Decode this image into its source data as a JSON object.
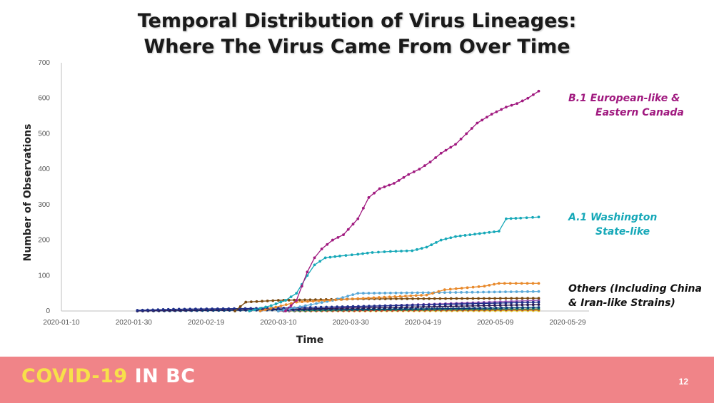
{
  "slide": {
    "title_line1": "Temporal Distribution of Virus Lineages:",
    "title_line2": "Where The Virus Came From Over Time",
    "footer_brand_a": "COVID-19",
    "footer_brand_b": " IN BC",
    "page_number": "12",
    "colors": {
      "footer_bg": "#f08488",
      "brand_yellow": "#f7e04a",
      "brand_white": "#ffffff"
    }
  },
  "chart_data": {
    "type": "line",
    "xlabel": "Time",
    "ylabel": "Number of Observations",
    "ylim": [
      0,
      700
    ],
    "yticks": [
      0,
      100,
      200,
      300,
      400,
      500,
      600,
      700
    ],
    "xlim": [
      "2020-01-10",
      "2020-05-29"
    ],
    "xticks": [
      "2020-01-10",
      "2020-01-30",
      "2020-02-19",
      "2020-03-10",
      "2020-03-30",
      "2020-04-19",
      "2020-05-09",
      "2020-05-29"
    ],
    "grid": false,
    "annotations": [
      {
        "series": "B.1",
        "lines": [
          "B.1   European-like &",
          "Eastern Canada"
        ],
        "color": "#a0197f"
      },
      {
        "series": "A.1",
        "lines": [
          "A.1   Washington",
          "State-like"
        ],
        "color": "#16a8b8"
      },
      {
        "series": "Others",
        "lines": [
          "Others (Including China",
          "& Iran-like Strains)"
        ],
        "color": "#111111"
      }
    ],
    "series": [
      {
        "name": "B.1",
        "color": "#a0197f",
        "x": [
          "2020-03-12",
          "2020-03-15",
          "2020-03-18",
          "2020-03-20",
          "2020-03-22",
          "2020-03-25",
          "2020-03-28",
          "2020-04-01",
          "2020-04-04",
          "2020-04-07",
          "2020-04-11",
          "2020-04-15",
          "2020-04-18",
          "2020-04-21",
          "2020-04-24",
          "2020-04-28",
          "2020-05-01",
          "2020-05-04",
          "2020-05-08",
          "2020-05-12",
          "2020-05-15",
          "2020-05-18",
          "2020-05-21"
        ],
        "values": [
          0,
          30,
          110,
          150,
          175,
          200,
          215,
          260,
          320,
          345,
          360,
          385,
          400,
          420,
          445,
          470,
          500,
          530,
          555,
          575,
          585,
          600,
          620
        ]
      },
      {
        "name": "A.1",
        "color": "#16a8b8",
        "x": [
          "2020-03-02",
          "2020-03-08",
          "2020-03-12",
          "2020-03-15",
          "2020-03-18",
          "2020-03-20",
          "2020-03-23",
          "2020-03-27",
          "2020-04-01",
          "2020-04-05",
          "2020-04-10",
          "2020-04-16",
          "2020-04-20",
          "2020-04-24",
          "2020-04-28",
          "2020-05-02",
          "2020-05-06",
          "2020-05-10",
          "2020-05-12",
          "2020-05-16",
          "2020-05-21"
        ],
        "values": [
          0,
          15,
          30,
          50,
          100,
          130,
          150,
          155,
          160,
          165,
          168,
          170,
          180,
          200,
          210,
          215,
          220,
          225,
          260,
          262,
          265
        ]
      },
      {
        "name": "",
        "color": "#e8892b",
        "x": [
          "2020-03-05",
          "2020-03-15",
          "2020-04-01",
          "2020-04-20",
          "2020-04-25",
          "2020-05-06",
          "2020-05-10",
          "2020-05-21"
        ],
        "values": [
          0,
          25,
          35,
          45,
          60,
          70,
          78,
          78
        ]
      },
      {
        "name": "",
        "color": "#5aa8d8",
        "x": [
          "2020-03-10",
          "2020-03-25",
          "2020-04-01",
          "2020-04-25",
          "2020-05-21"
        ],
        "values": [
          0,
          30,
          50,
          52,
          55
        ]
      },
      {
        "name": "",
        "color": "#7a4a10",
        "x": [
          "2020-02-27",
          "2020-03-01",
          "2020-03-10",
          "2020-04-01",
          "2020-05-21"
        ],
        "values": [
          0,
          25,
          30,
          34,
          36
        ]
      },
      {
        "name": "",
        "color": "#1f2f8a",
        "x": [
          "2020-01-31",
          "2020-02-10",
          "2020-03-10",
          "2020-04-10",
          "2020-05-21"
        ],
        "values": [
          2,
          5,
          8,
          15,
          25
        ]
      },
      {
        "name": "",
        "color": "#2b1b55",
        "x": [
          "2020-01-31",
          "2020-02-19",
          "2020-03-10",
          "2020-04-10",
          "2020-05-21"
        ],
        "values": [
          0,
          3,
          5,
          10,
          18
        ]
      },
      {
        "name": "",
        "color": "#0a3e7a",
        "x": [
          "2020-01-31",
          "2020-03-01",
          "2020-03-20",
          "2020-04-20",
          "2020-05-21"
        ],
        "values": [
          0,
          2,
          4,
          6,
          10
        ]
      },
      {
        "name": "",
        "color": "#9b59b6",
        "x": [
          "2020-03-10",
          "2020-04-01",
          "2020-05-21"
        ],
        "values": [
          0,
          12,
          30
        ]
      },
      {
        "name": "",
        "color": "#2e8b57",
        "x": [
          "2020-03-10",
          "2020-04-01",
          "2020-05-21"
        ],
        "values": [
          0,
          3,
          6
        ]
      },
      {
        "name": "",
        "color": "#c0392b",
        "x": [
          "2020-03-10",
          "2020-04-15",
          "2020-05-21"
        ],
        "values": [
          0,
          2,
          4
        ]
      },
      {
        "name": "",
        "color": "#e0c020",
        "x": [
          "2020-03-10",
          "2020-05-21"
        ],
        "values": [
          0,
          1
        ]
      }
    ]
  }
}
